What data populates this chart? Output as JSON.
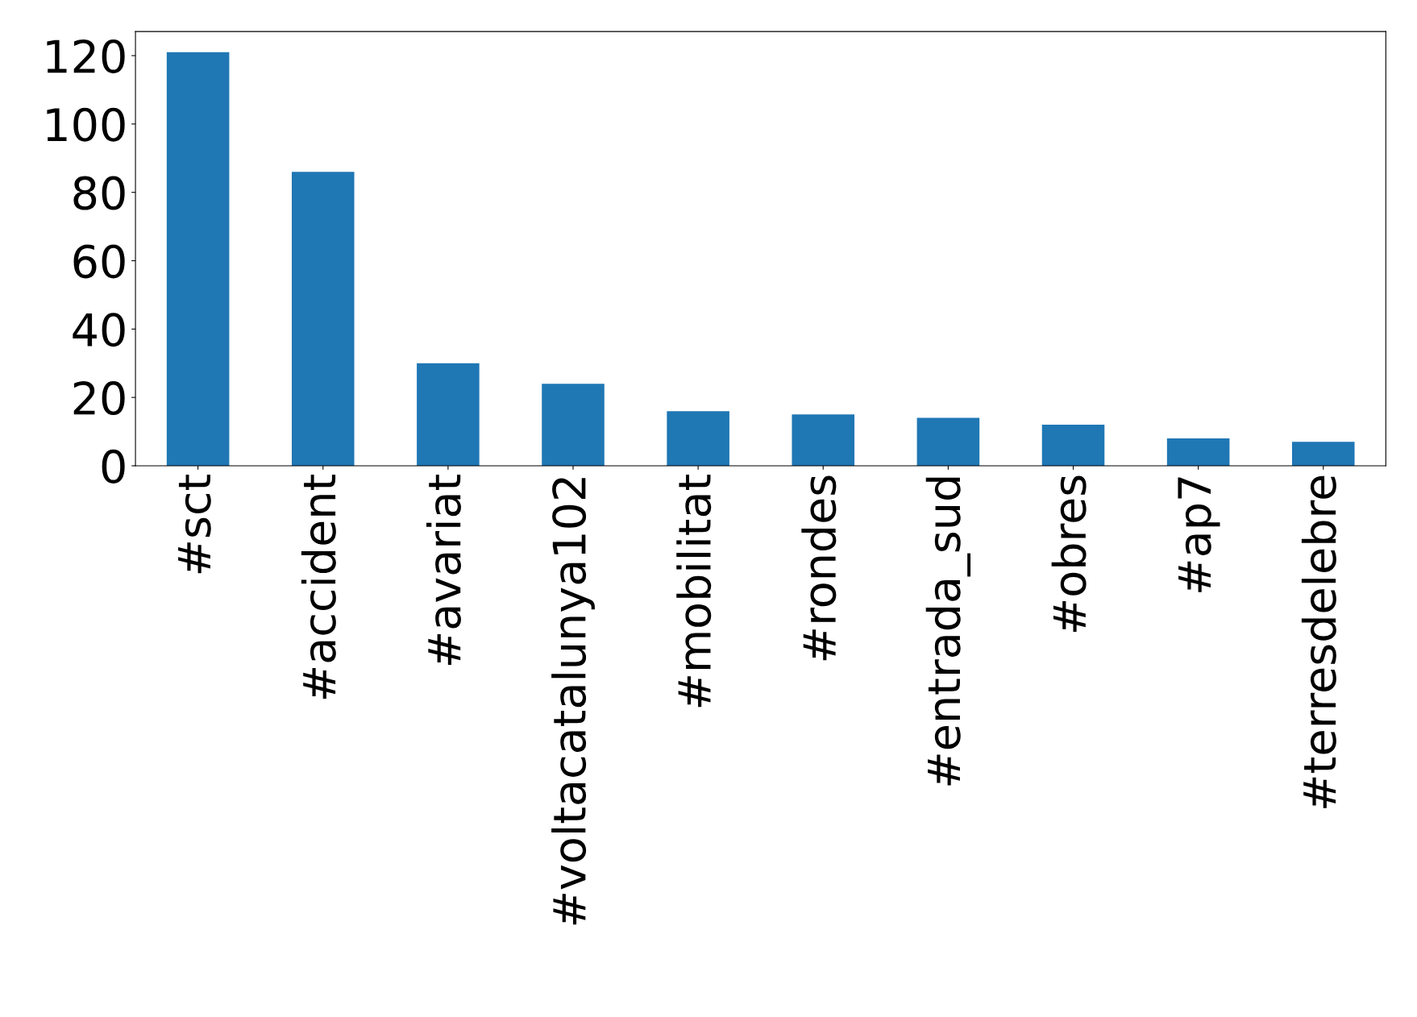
{
  "chart_data": {
    "type": "bar",
    "categories": [
      "#sct",
      "#accident",
      "#avariat",
      "#voltacatalunya102",
      "#mobilitat",
      "#rondes",
      "#entrada_sud",
      "#obres",
      "#ap7",
      "#terresdelebre"
    ],
    "values": [
      121,
      86,
      30,
      24,
      16,
      15,
      14,
      12,
      8,
      7
    ],
    "color": "#1f77b4",
    "ylim": [
      0,
      127.05
    ],
    "yticks": [
      0,
      20,
      40,
      60,
      80,
      100,
      120
    ],
    "grid": false,
    "legend": false
  }
}
